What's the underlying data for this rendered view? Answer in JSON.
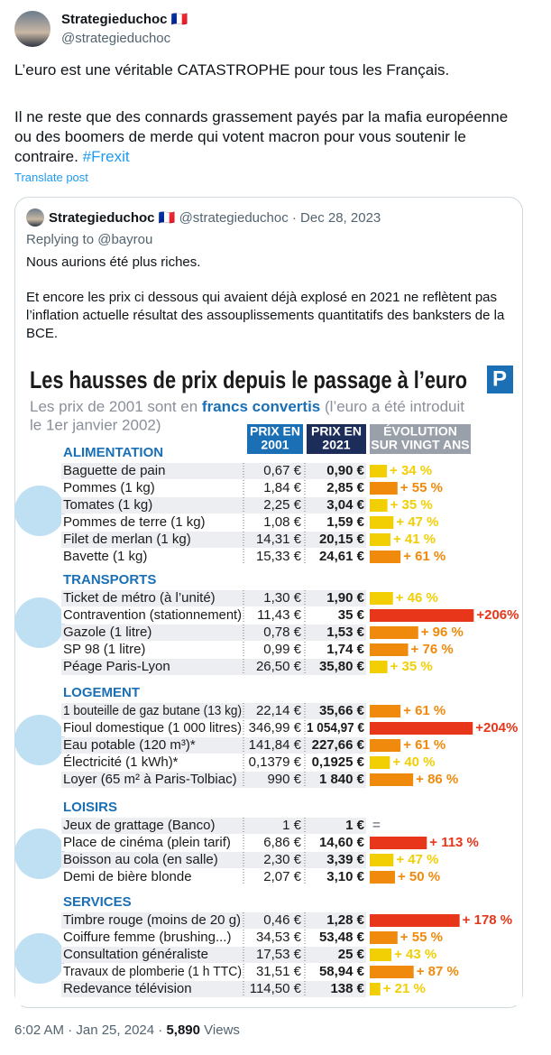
{
  "tweet": {
    "name": "Strategieduchoc",
    "flag": "🇫🇷",
    "handle": "@strategieduchoc",
    "text_1": "L’euro est une véritable CATASTROPHE pour tous les Français.",
    "text_2": "Il ne reste que des connards grassement payés par la mafia européenne ou des boomers de merde qui votent macron pour vous soutenir le contraire.",
    "hashtag": "#Frexit",
    "translate": "Translate post",
    "time": "6:02 AM · Jan 25, 2024 ·",
    "views_count": "5,890",
    "views_label": "Views"
  },
  "quote": {
    "name": "Strategieduchoc",
    "flag": "🇫🇷",
    "meta": "@strategieduchoc · Dec 28, 2023",
    "replying": "Replying to @bayrou",
    "text_1": "Nous aurions été plus riches.",
    "text_2": "Et encore les prix ci dessous qui avaient déjà explosé en 2021 ne reflètent pas l’inflation actuelle résultat des assouplissements quantitatifs des banksters de la BCE."
  },
  "image": {
    "title": "Les hausses de prix depuis le passage à l’euro",
    "logo": "P",
    "subtitle_1": "Les prix de 2001 sont en",
    "subtitle_bold": "francs convertis",
    "subtitle_2": "(l’euro a été introduit",
    "subtitle_3": "le 1er janvier 2002)",
    "headers": [
      [
        "PRIX EN",
        "2001"
      ],
      [
        "PRIX EN",
        "2021"
      ],
      [
        "ÉVOLUTION",
        "SUR VINGT ANS"
      ]
    ],
    "sections": [
      {
        "name": "ALIMENTATION",
        "rows": [
          {
            "label": "Baguette de pain",
            "p2001": "0,67 €",
            "p2021": "0,90 €",
            "evolution": 34,
            "evolution_label": "+ 34 %",
            "color": "#f2cf05"
          },
          {
            "label": "Pommes (1 kg)",
            "p2001": "1,84 €",
            "p2021": "2,85 €",
            "evolution": 55,
            "evolution_label": "+ 55 %",
            "color": "#ef8a0c"
          },
          {
            "label": "Tomates (1 kg)",
            "p2001": "2,25 €",
            "p2021": "3,04 €",
            "evolution": 35,
            "evolution_label": "+ 35 %",
            "color": "#f2cf05"
          },
          {
            "label": "Pommes de terre (1 kg)",
            "p2001": "1,08 €",
            "p2021": "1,59 €",
            "evolution": 47,
            "evolution_label": "+ 47 %",
            "color": "#f2cf05"
          },
          {
            "label": "Filet de merlan (1 kg)",
            "p2001": "14,31 €",
            "p2021": "20,15 €",
            "evolution": 41,
            "evolution_label": "+ 41 %",
            "color": "#f2cf05"
          },
          {
            "label": "Bavette (1 kg)",
            "p2001": "15,33 €",
            "p2021": "24,61 €",
            "evolution": 61,
            "evolution_label": "+ 61 %",
            "color": "#ef8a0c"
          }
        ]
      },
      {
        "name": "TRANSPORTS",
        "rows": [
          {
            "label": "Ticket de métro (à l’unité)",
            "p2001": "1,30 €",
            "p2021": "1,90 €",
            "evolution": 46,
            "evolution_label": "+ 46 %",
            "color": "#f2cf05"
          },
          {
            "label": "Contravention (stationnement)",
            "p2001": "11,43 €",
            "p2021": "35 €",
            "evolution": 206,
            "evolution_label": "+206%",
            "color": "#e8361a"
          },
          {
            "label": "Gazole (1 litre)",
            "p2001": "0,78 €",
            "p2021": "1,53 €",
            "evolution": 96,
            "evolution_label": "+ 96 %",
            "color": "#ef8a0c"
          },
          {
            "label": "SP 98 (1 litre)",
            "p2001": "0,99 €",
            "p2021": "1,74 €",
            "evolution": 76,
            "evolution_label": "+ 76 %",
            "color": "#ef8a0c"
          },
          {
            "label": "Péage Paris-Lyon",
            "p2001": "26,50 €",
            "p2021": "35,80 €",
            "evolution": 35,
            "evolution_label": "+ 35 %",
            "color": "#f2cf05"
          }
        ]
      },
      {
        "name": "LOGEMENT",
        "rows": [
          {
            "label": "1 bouteille de gaz butane (13 kg)",
            "p2001": "22,14 €",
            "p2021": "35,66 €",
            "evolution": 61,
            "evolution_label": "+ 61 %",
            "color": "#ef8a0c"
          },
          {
            "label": "Fioul domestique (1 000 litres)",
            "p2001": "346,99 €",
            "p2021": "1 054,97 €",
            "evolution": 204,
            "evolution_label": "+204%",
            "color": "#e8361a"
          },
          {
            "label": "Eau potable (120 m³)*",
            "p2001": "141,84 €",
            "p2021": "227,66 €",
            "evolution": 61,
            "evolution_label": "+ 61 %",
            "color": "#ef8a0c"
          },
          {
            "label": "Électricité (1 kWh)*",
            "p2001": "0,1379 €",
            "p2021": "0,1925 €",
            "evolution": 40,
            "evolution_label": "+ 40 %",
            "color": "#f2cf05"
          },
          {
            "label": "Loyer (65 m² à Paris-Tolbiac)",
            "p2001": "990 €",
            "p2021": "1 840 €",
            "evolution": 86,
            "evolution_label": "+ 86 %",
            "color": "#ef8a0c"
          }
        ]
      },
      {
        "name": "LOISIRS",
        "rows": [
          {
            "label": "Jeux de grattage (Banco)",
            "p2001": "1 €",
            "p2021": "1 €",
            "evolution": 0,
            "evolution_label": "=",
            "color": "#8a8f99"
          },
          {
            "label": "Place de cinéma (plein tarif)",
            "p2001": "6,86 €",
            "p2021": "14,60 €",
            "evolution": 113,
            "evolution_label": "+ 113 %",
            "color": "#e8361a"
          },
          {
            "label": "Boisson au cola (en salle)",
            "p2001": "2,30 €",
            "p2021": "3,39 €",
            "evolution": 47,
            "evolution_label": "+ 47 %",
            "color": "#f2cf05"
          },
          {
            "label": "Demi de bière blonde",
            "p2001": "2,07 €",
            "p2021": "3,10 €",
            "evolution": 50,
            "evolution_label": "+ 50 %",
            "color": "#ef8a0c"
          }
        ]
      },
      {
        "name": "SERVICES",
        "rows": [
          {
            "label": "Timbre rouge (moins de 20 g)",
            "p2001": "0,46 €",
            "p2021": "1,28 €",
            "evolution": 178,
            "evolution_label": "+ 178 %",
            "color": "#e8361a"
          },
          {
            "label": "Coiffure femme (brushing...)",
            "p2001": "34,53 €",
            "p2021": "53,48 €",
            "evolution": 55,
            "evolution_label": "+ 55 %",
            "color": "#ef8a0c"
          },
          {
            "label": "Consultation généraliste",
            "p2001": "17,53 €",
            "p2021": "25 €",
            "evolution": 43,
            "evolution_label": "+ 43 %",
            "color": "#f2cf05"
          },
          {
            "label": "Travaux de plomberie (1 h TTC)",
            "p2001": "31,51 €",
            "p2021": "58,94 €",
            "evolution": 87,
            "evolution_label": "+ 87 %",
            "color": "#ef8a0c"
          },
          {
            "label": "Redevance télévision",
            "p2001": "114,50 €",
            "p2021": "138 €",
            "evolution": 21,
            "evolution_label": "+ 21 %",
            "color": "#f2cf05"
          }
        ]
      }
    ]
  }
}
